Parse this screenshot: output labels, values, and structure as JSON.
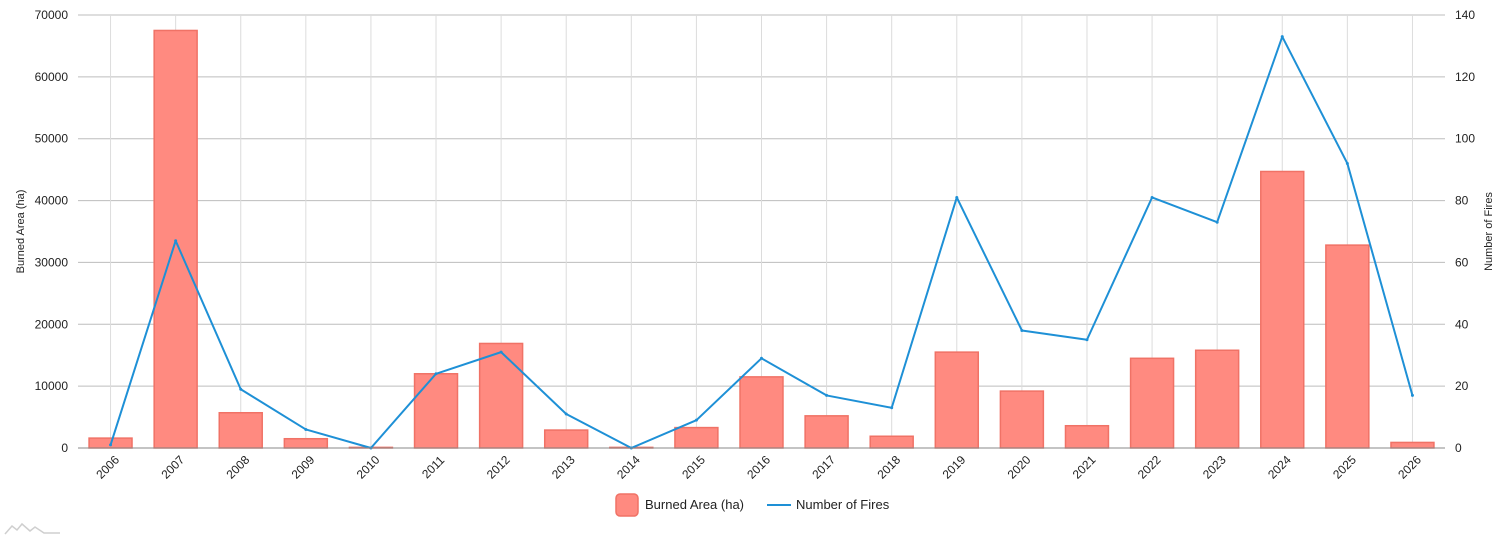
{
  "chart_data": {
    "type": "bar",
    "categories": [
      "2006",
      "2007",
      "2008",
      "2009",
      "2010",
      "2011",
      "2012",
      "2013",
      "2014",
      "2015",
      "2016",
      "2017",
      "2018",
      "2019",
      "2020",
      "2021",
      "2022",
      "2023",
      "2024",
      "2025",
      "2026"
    ],
    "series": [
      {
        "name": "Burned Area (ha)",
        "type": "bar",
        "axis": "left",
        "color": "#ff8a80",
        "values": [
          1600,
          67500,
          5700,
          1500,
          100,
          12000,
          16900,
          2900,
          100,
          3300,
          11500,
          5200,
          1900,
          15500,
          9200,
          3600,
          14500,
          15800,
          44700,
          32800,
          900
        ]
      },
      {
        "name": "Number of Fires",
        "type": "line",
        "axis": "right",
        "color": "#1e90d6",
        "values": [
          1,
          67,
          19,
          6,
          0,
          24,
          31,
          11,
          0,
          9,
          29,
          17,
          13,
          81,
          38,
          35,
          81,
          73,
          133,
          92,
          17
        ]
      }
    ],
    "ylabel": "Burned Area (ha)",
    "y2label": "Number of Fires",
    "ylim": [
      0,
      70000
    ],
    "y2lim": [
      0,
      140
    ],
    "yticks": [
      0,
      10000,
      20000,
      30000,
      40000,
      50000,
      60000,
      70000
    ],
    "y2ticks": [
      0,
      20,
      40,
      60,
      80,
      100,
      120,
      140
    ],
    "grid": true,
    "legend": "bottom-center"
  },
  "logo_icon": "chart-mountain-icon"
}
